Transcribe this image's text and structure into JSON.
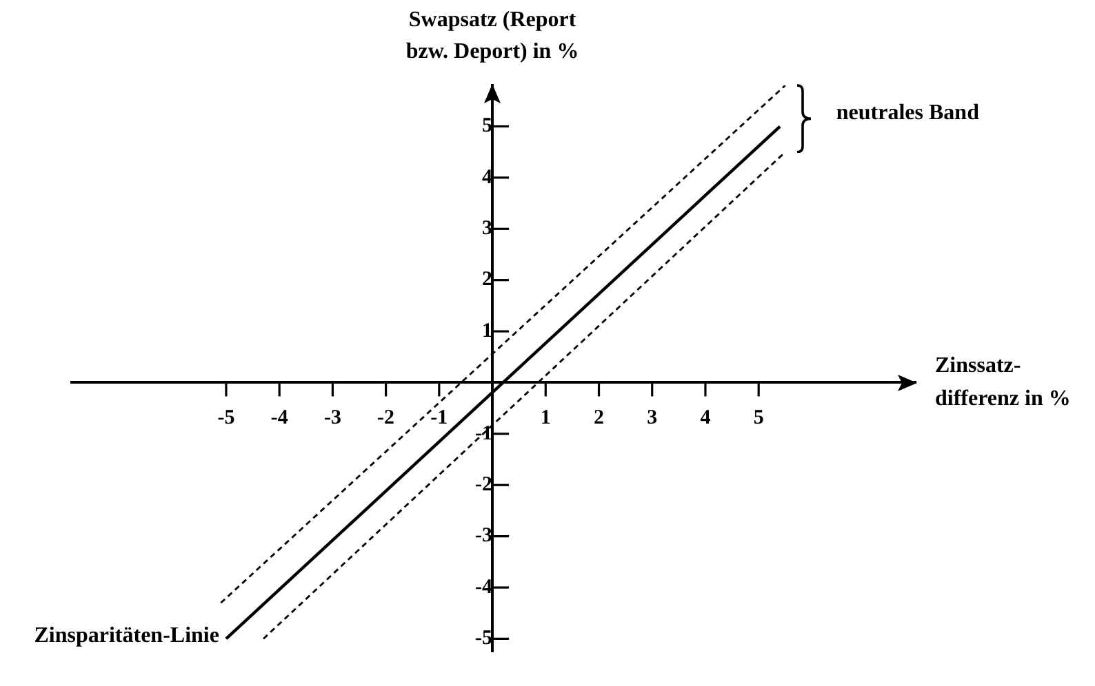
{
  "chart_data": {
    "type": "line",
    "xlabel": "Zinssatz-differenz in %",
    "ylabel": "Swapsatz (Report bzw. Deport) in %",
    "xlim": [
      -7.9,
      7.95
    ],
    "ylim": [
      -5.25,
      5.8
    ],
    "xticks": [
      -5,
      -4,
      -3,
      -2,
      -1,
      1,
      2,
      3,
      4,
      5
    ],
    "yticks": [
      -5,
      -4,
      -3,
      -2,
      -1,
      1,
      2,
      3,
      4,
      5
    ],
    "line_style": "solid",
    "series": [
      {
        "name": "Zinsparitäten-Linie",
        "color": "#000000",
        "x": [
          -5.0,
          5.4
        ],
        "values": [
          -5.0,
          5.0
        ]
      },
      {
        "color": "#000000",
        "line_style": "dashed",
        "x": [
          -5.1,
          5.5
        ],
        "values": [
          -4.3,
          5.8
        ]
      },
      {
        "color": "#000000",
        "line_style": "dashed",
        "x": [
          -4.3,
          5.5
        ],
        "values": [
          -5.0,
          4.5
        ]
      }
    ],
    "annotations": [
      "neutrales Band"
    ]
  }
}
